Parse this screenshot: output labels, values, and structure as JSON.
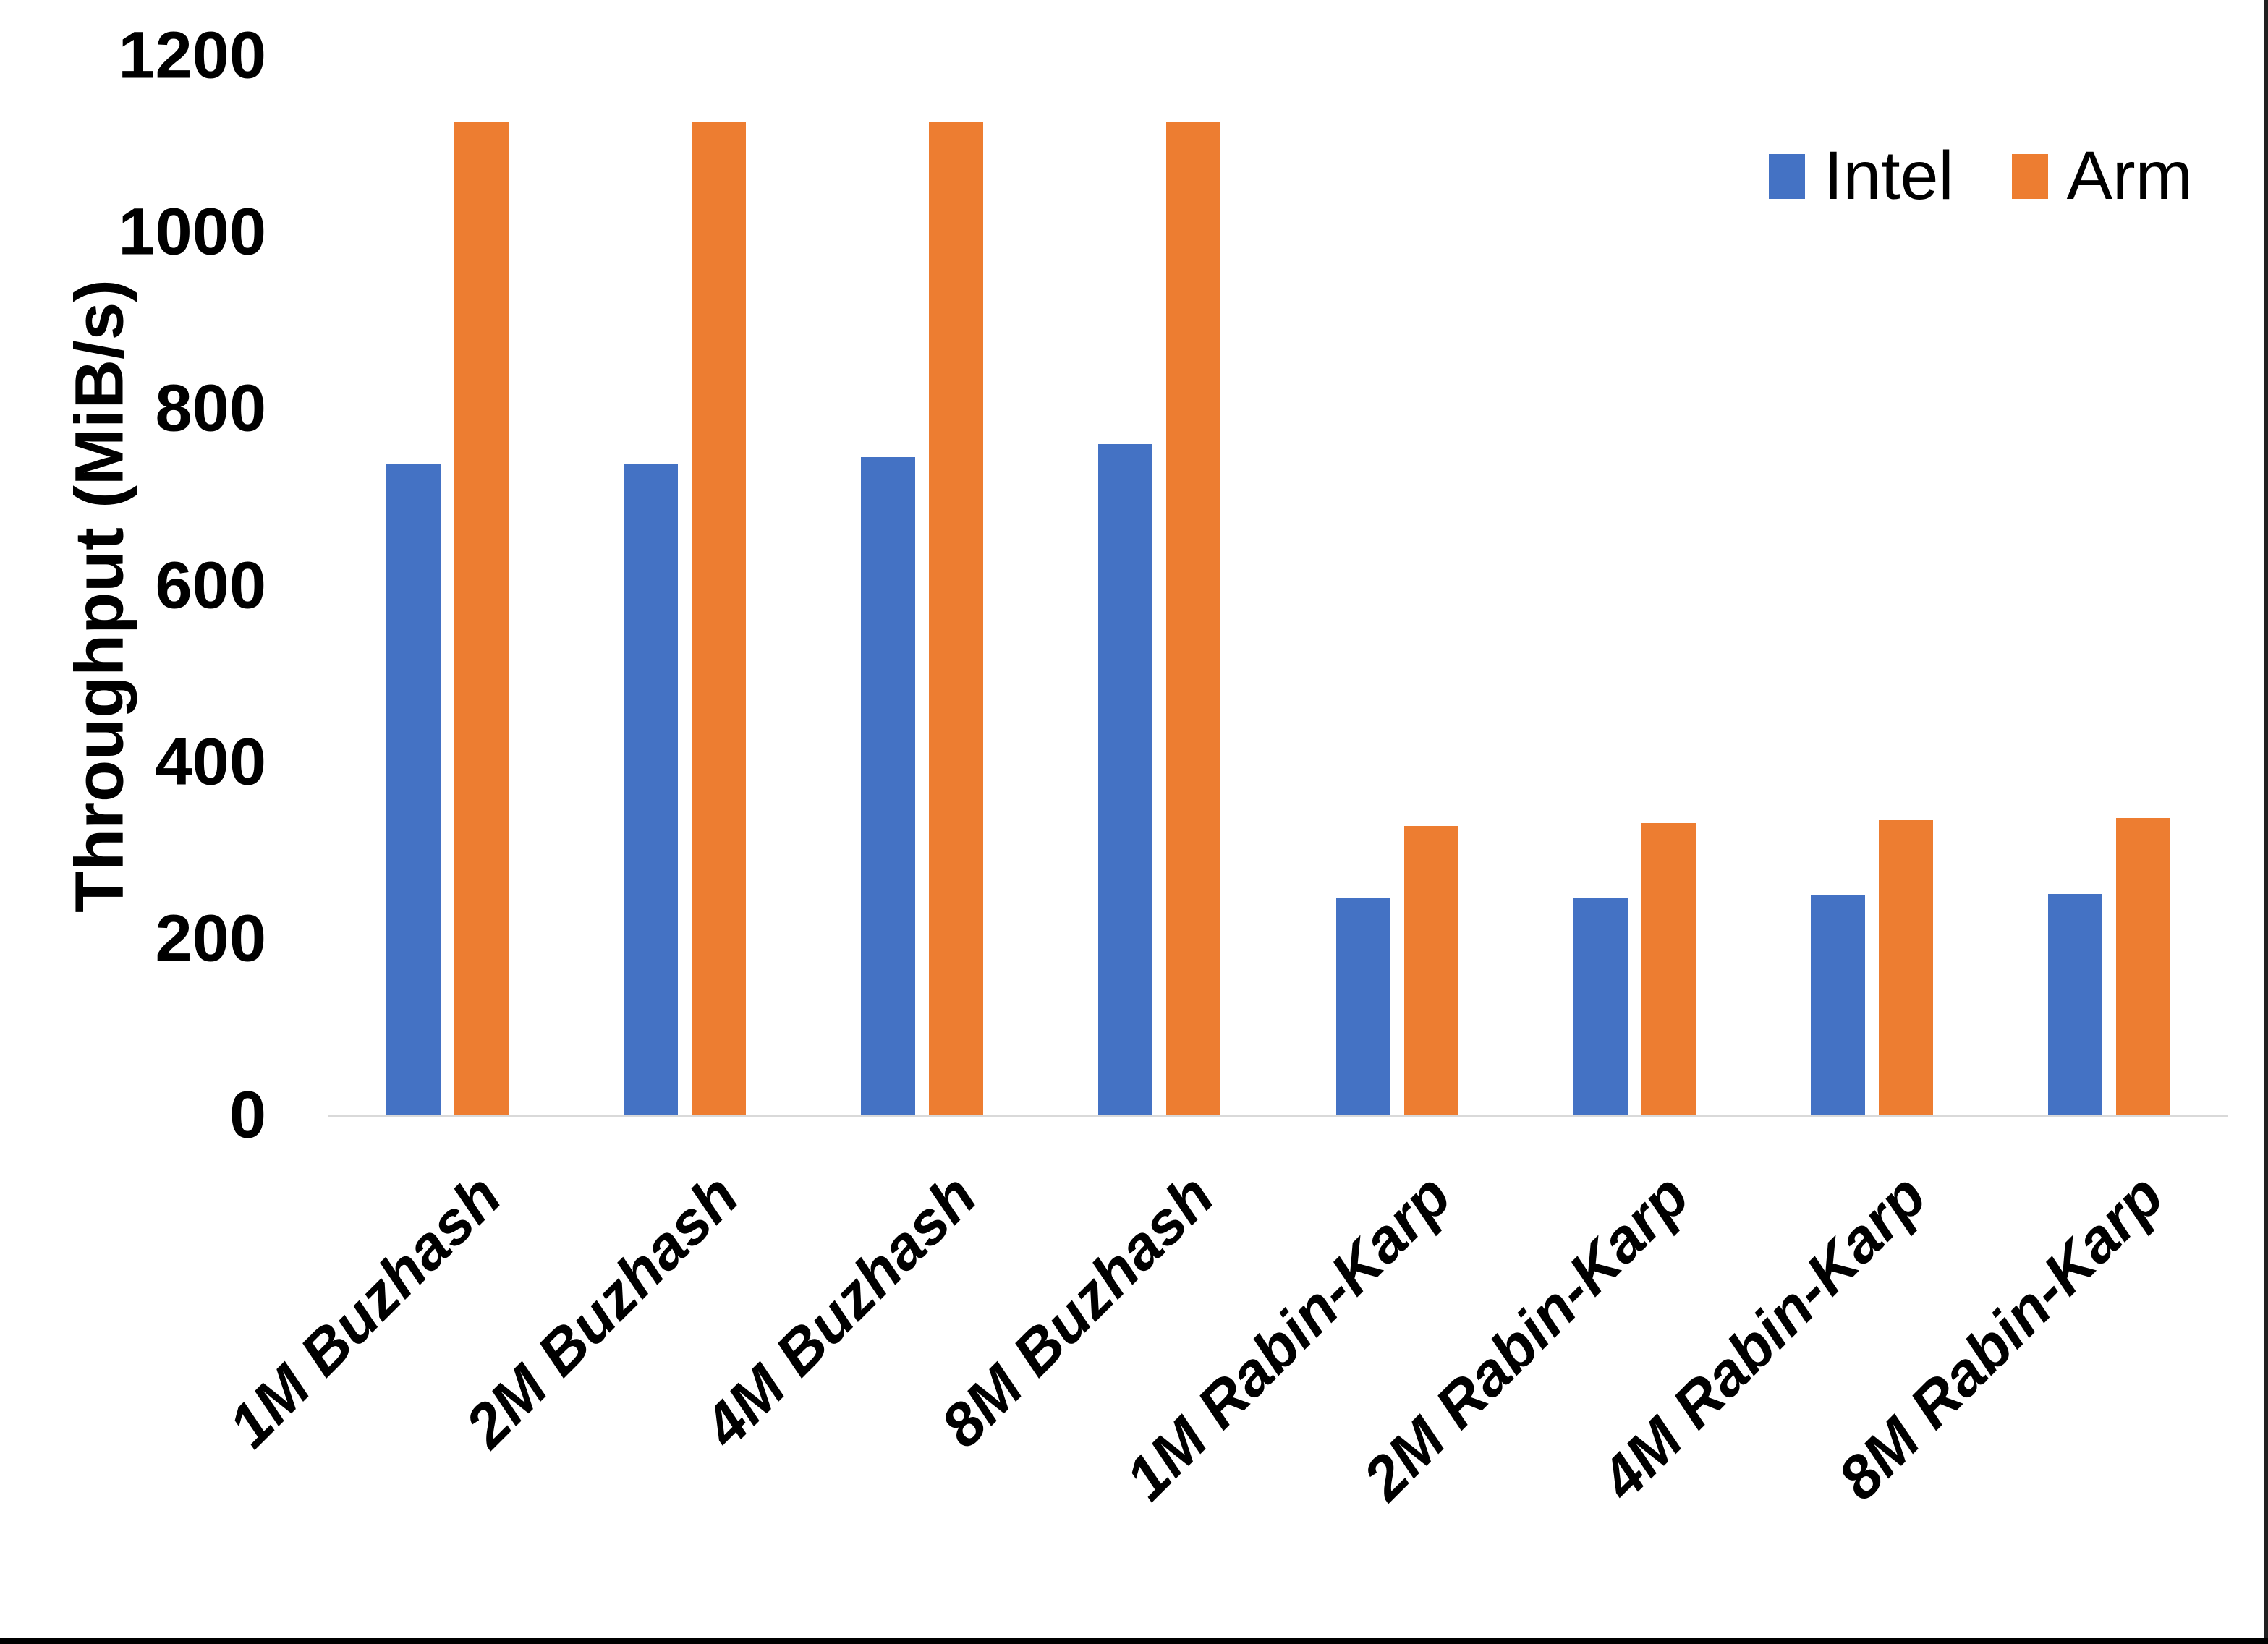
{
  "chart_data": {
    "type": "bar",
    "title": "",
    "xlabel": "",
    "ylabel": "Throughput (MiB/s)",
    "ylim": [
      0,
      1200
    ],
    "yticks": [
      0,
      200,
      400,
      600,
      800,
      1000,
      1200
    ],
    "grid": false,
    "legend_position": "top-right",
    "categories": [
      "1M Buzhash",
      "2M Buzhash",
      "4M Buzhash",
      "8M Buzhash",
      "1M Rabin-Karp",
      "2M Rabin-Karp",
      "4M Rabin-Karp",
      "8M Rabin-Karp"
    ],
    "series": [
      {
        "name": "Intel",
        "color": "#4472C4",
        "values": [
          737,
          737,
          745,
          760,
          246,
          246,
          250,
          251
        ]
      },
      {
        "name": "Arm",
        "color": "#ED7D31",
        "values": [
          1125,
          1125,
          1125,
          1125,
          328,
          331,
          334,
          337
        ]
      }
    ],
    "axis_line_color": "#d9d9d9",
    "text_color": "#000000"
  }
}
